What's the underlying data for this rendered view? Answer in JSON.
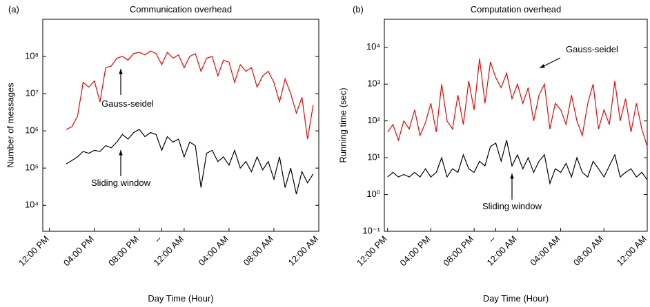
{
  "chart_data": [
    {
      "type": "line",
      "label": "(a)",
      "title": "Communication overhead",
      "y_label": "Number of messages",
      "x_label": "Day Time (Hour)",
      "log_y": true,
      "ylim": [
        2000,
        1000000000.0
      ],
      "yticks": [
        {
          "value": 10000,
          "label": "10⁴"
        },
        {
          "value": 100000,
          "label": "10⁵"
        },
        {
          "value": 1000000,
          "label": "10⁶"
        },
        {
          "value": 10000000,
          "label": "10⁷"
        },
        {
          "value": 100000000,
          "label": "10⁸"
        }
      ],
      "xlim": [
        11.4,
        36
      ],
      "xticks": [
        {
          "value": 12,
          "label": "12:00 PM"
        },
        {
          "value": 16,
          "label": "04:00 PM"
        },
        {
          "value": 20,
          "label": "08:00 PM"
        },
        {
          "value": 22,
          "label": "–"
        },
        {
          "value": 24,
          "label": "12:00 AM"
        },
        {
          "value": 28,
          "label": "04:00 AM"
        },
        {
          "value": 32,
          "label": "08:00 AM"
        },
        {
          "value": 36,
          "label": "12:00 AM"
        }
      ],
      "x": [
        13.5,
        14,
        14.5,
        15,
        15.5,
        16,
        16.5,
        17,
        17.5,
        18,
        18.5,
        19,
        19.5,
        20,
        20.5,
        21,
        21.5,
        22,
        22.5,
        23,
        23.5,
        24,
        24.5,
        25,
        25.5,
        26,
        26.5,
        27,
        27.5,
        28,
        28.5,
        29,
        29.5,
        30,
        30.5,
        31,
        31.5,
        32,
        32.5,
        33,
        33.5,
        34,
        34.5,
        35,
        35.5
      ],
      "series": [
        {
          "name": "Gauss-seidel",
          "color": "#ee0000",
          "values": [
            1100000.0,
            1300000.0,
            2500000.0,
            20000000.0,
            15000000.0,
            22000000.0,
            6000000.0,
            50000000.0,
            55000000.0,
            90000000.0,
            100000000.0,
            80000000.0,
            120000000.0,
            130000000.0,
            110000000.0,
            140000000.0,
            120000000.0,
            60000000.0,
            130000000.0,
            90000000.0,
            110000000.0,
            50000000.0,
            100000000.0,
            120000000.0,
            40000000.0,
            90000000.0,
            100000000.0,
            30000000.0,
            80000000.0,
            70000000.0,
            20000000.0,
            60000000.0,
            40000000.0,
            50000000.0,
            15000000.0,
            30000000.0,
            40000000.0,
            20000000.0,
            6000000.0,
            25000000.0,
            10000000.0,
            3000000.0,
            8000000.0,
            600000.0,
            5000000.0
          ]
        },
        {
          "name": "Sliding window",
          "color": "#000000",
          "values": [
            130000.0,
            160000.0,
            200000.0,
            280000.0,
            250000.0,
            300000.0,
            280000.0,
            400000.0,
            350000.0,
            500000.0,
            800000.0,
            600000.0,
            900000.0,
            1100000.0,
            700000.0,
            900000.0,
            800000.0,
            300000.0,
            700000.0,
            500000.0,
            600000.0,
            200000.0,
            500000.0,
            400000.0,
            30000.0,
            250000.0,
            300000.0,
            150000.0,
            200000.0,
            120000.0,
            300000.0,
            100000.0,
            150000.0,
            80000.0,
            200000.0,
            90000.0,
            150000.0,
            50000.0,
            200000.0,
            30000.0,
            100000.0,
            20000.0,
            80000.0,
            40000.0,
            70000.0
          ]
        }
      ]
    },
    {
      "type": "line",
      "label": "(b)",
      "title": "Computation overhead",
      "y_label": "Running time (sec)",
      "x_label": "Day Time (Hour)",
      "log_y": true,
      "ylim": [
        0.1,
        58000
      ],
      "yticks": [
        {
          "value": 0.1,
          "label": "10⁻¹"
        },
        {
          "value": 1,
          "label": "10⁰"
        },
        {
          "value": 10,
          "label": "10¹"
        },
        {
          "value": 100,
          "label": "10²"
        },
        {
          "value": 1000,
          "label": "10³"
        },
        {
          "value": 10000,
          "label": "10⁴"
        }
      ],
      "xlim": [
        11.7,
        36
      ],
      "xticks": [
        {
          "value": 12,
          "label": "12:00 PM"
        },
        {
          "value": 16,
          "label": "04:00 PM"
        },
        {
          "value": 20,
          "label": "08:00 PM"
        },
        {
          "value": 22,
          "label": "–"
        },
        {
          "value": 24,
          "label": "12:00 AM"
        },
        {
          "value": 28,
          "label": "04:00 AM"
        },
        {
          "value": 32,
          "label": "08:00 AM"
        },
        {
          "value": 36,
          "label": "12:00 AM"
        }
      ],
      "x": [
        12,
        12.5,
        13,
        13.5,
        14,
        14.5,
        15,
        15.5,
        16,
        16.5,
        17,
        17.5,
        18,
        18.5,
        19,
        19.5,
        20,
        20.5,
        21,
        21.5,
        22,
        22.5,
        23,
        23.5,
        24,
        24.5,
        25,
        25.5,
        26,
        26.5,
        27,
        27.5,
        28,
        28.5,
        29,
        29.5,
        30,
        30.5,
        31,
        31.5,
        32,
        32.5,
        33,
        33.5,
        34,
        34.5,
        35,
        35.5,
        36
      ],
      "series": [
        {
          "name": "Gauss-seidel",
          "color": "#ee0000",
          "values": [
            50,
            80,
            30,
            100,
            60,
            200,
            40,
            90,
            300,
            50,
            1000,
            100,
            60,
            500,
            80,
            1200,
            200,
            5000,
            300,
            4000,
            1500,
            800,
            2000,
            400,
            1000,
            300,
            800,
            100,
            500,
            1000,
            60,
            300,
            200,
            80,
            500,
            100,
            40,
            300,
            1000,
            60,
            200,
            80,
            1200,
            100,
            400,
            50,
            300,
            60,
            20
          ]
        },
        {
          "name": "Sliding window",
          "color": "#000000",
          "values": [
            3,
            4,
            3,
            3.5,
            3,
            4,
            3,
            5,
            3,
            4,
            10,
            3,
            5,
            4,
            12,
            5,
            4,
            8,
            6,
            20,
            25,
            8,
            30,
            6,
            12,
            5,
            10,
            4,
            8,
            12,
            2,
            5,
            4,
            7,
            3,
            10,
            4,
            3,
            8,
            5,
            3,
            6,
            12,
            3,
            4,
            5,
            3,
            4,
            2.5
          ]
        }
      ]
    }
  ]
}
